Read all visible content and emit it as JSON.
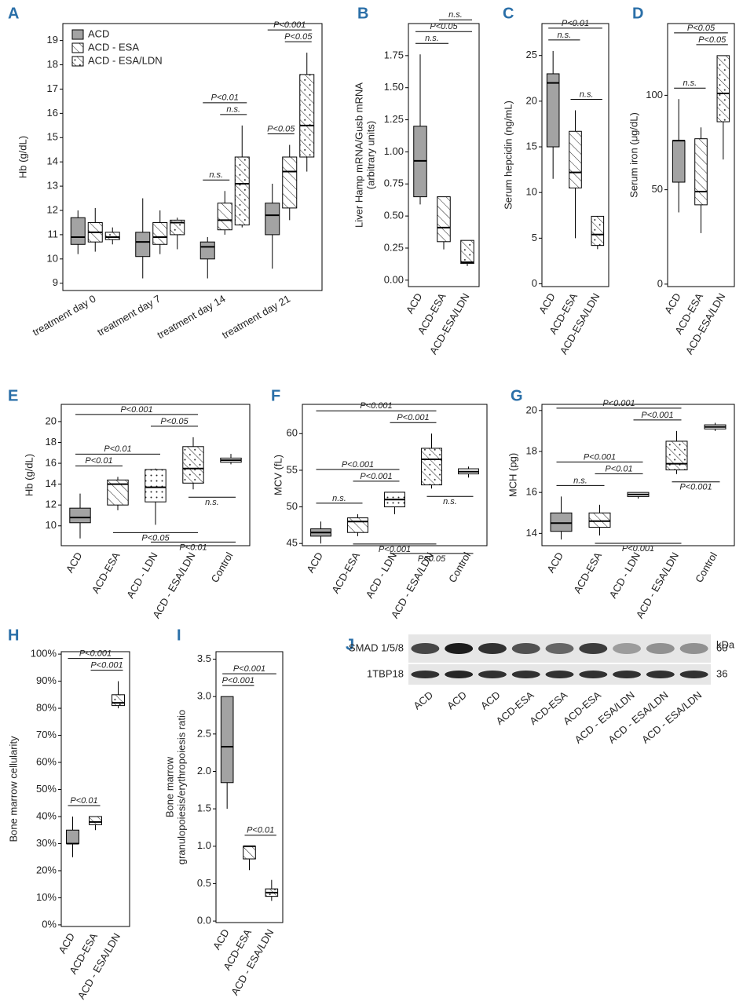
{
  "chart_data": [
    {
      "label": "A",
      "type": "box",
      "ylabel": "Hb (g/dL)",
      "categories": [
        "treatment day 0",
        "treatment day 7",
        "treatment day 14",
        "treatment day 21"
      ],
      "series": [
        {
          "name": "ACD",
          "fill": "gray",
          "min": [
            10.2,
            9.2,
            9.2,
            9.6
          ],
          "q1": [
            10.6,
            10.1,
            10.0,
            11.0
          ],
          "median": [
            10.9,
            10.7,
            10.5,
            11.8
          ],
          "q3": [
            11.7,
            11.1,
            10.7,
            12.3
          ],
          "max": [
            12.0,
            12.5,
            10.9,
            13.1
          ]
        },
        {
          "name": "ACD - ESA",
          "fill": "hatch",
          "min": [
            10.3,
            10.2,
            11.0,
            11.6
          ],
          "q1": [
            10.7,
            10.6,
            11.2,
            12.1
          ],
          "median": [
            11.1,
            10.9,
            11.6,
            13.6
          ],
          "q3": [
            11.5,
            11.5,
            12.3,
            14.2
          ],
          "max": [
            12.1,
            12.0,
            12.8,
            14.7
          ]
        },
        {
          "name": "ACD - ESA/LDN",
          "fill": "hatch-dots",
          "min": [
            10.6,
            10.4,
            11.3,
            13.6
          ],
          "q1": [
            10.8,
            11.0,
            11.4,
            14.2
          ],
          "median": [
            10.9,
            11.5,
            13.1,
            15.5
          ],
          "q3": [
            11.1,
            11.6,
            14.2,
            17.6
          ],
          "max": [
            11.3,
            11.7,
            15.5,
            18.5
          ]
        }
      ],
      "ylim": [
        8.7,
        19.7
      ],
      "yticks": [
        9,
        10,
        11,
        12,
        13,
        14,
        15,
        16,
        17,
        18,
        19
      ],
      "comparisons": [
        {
          "text": "n.s.",
          "pair": [
            6,
            7
          ]
        },
        {
          "text": "n.s.",
          "pair": [
            7,
            8
          ]
        },
        {
          "text": "P<0.01",
          "pair": [
            6,
            8
          ]
        },
        {
          "text": "P<0.05",
          "pair": [
            9,
            10
          ]
        },
        {
          "text": "P<0.05",
          "pair": [
            10,
            11
          ]
        },
        {
          "text": "P<0.001",
          "pair": [
            9,
            11
          ]
        }
      ]
    },
    {
      "label": "B",
      "type": "box",
      "ylabel": [
        "Liver Hamp mRNA/Gusb mRNA",
        "(arbitrary units)"
      ],
      "categories": [
        "ACD",
        "ACD-ESA",
        "ACD-ESA/LDN"
      ],
      "series": [
        {
          "fill": [
            "gray",
            "hatch",
            "hatch-dots"
          ],
          "min": [
            0.59,
            0.24,
            0.11
          ],
          "q1": [
            0.65,
            0.3,
            0.13
          ],
          "median": [
            0.93,
            0.41,
            0.14
          ],
          "q3": [
            1.2,
            0.65,
            0.31
          ],
          "max": [
            1.76,
            0.65,
            0.31
          ]
        }
      ],
      "ylim": [
        -0.05,
        2.0
      ],
      "yticks": [
        {
          "value": 0,
          "label": "0.00"
        },
        0.25,
        {
          "value": 0.5,
          "label": "0.50"
        },
        0.75,
        {
          "value": 1,
          "label": "1.00"
        },
        1.25,
        {
          "value": 1.5,
          "label": "1.50"
        },
        1.75
      ],
      "comparisons": [
        {
          "text": "n.s.",
          "pair": [
            0,
            1
          ]
        },
        {
          "text": "P<0.05",
          "pair": [
            0,
            2
          ]
        },
        {
          "text": "n.s.",
          "pair": [
            1,
            2
          ]
        }
      ]
    },
    {
      "label": "C",
      "type": "box",
      "ylabel": "Serum hepcidin (ng/mL)",
      "categories": [
        "ACD",
        "ACD-ESA",
        "ACD-ESA/LDN"
      ],
      "series": [
        {
          "fill": [
            "gray",
            "hatch",
            "hatch-dots"
          ],
          "min": [
            11.5,
            5,
            3.8
          ],
          "q1": [
            15,
            10.5,
            4.2
          ],
          "median": [
            22,
            12.2,
            5.4
          ],
          "q3": [
            23,
            16.7,
            7.4
          ],
          "max": [
            25.5,
            19,
            7.4
          ]
        }
      ],
      "ylim": [
        -0.3,
        28.5
      ],
      "yticks": [
        0,
        5,
        10,
        15,
        20,
        25
      ],
      "comparisons": [
        {
          "text": "n.s.",
          "pair": [
            1,
            2
          ]
        },
        {
          "text": "n.s.",
          "pair": [
            0,
            1
          ]
        },
        {
          "text": "P<0.01",
          "pair": [
            0,
            2
          ]
        }
      ]
    },
    {
      "label": "D",
      "type": "box",
      "ylabel": "Serum iron (μg/dL)",
      "categories": [
        "ACD",
        "ACD-ESA",
        "ACD-ESA/LDN"
      ],
      "series": [
        {
          "fill": [
            "gray",
            "hatch",
            "hatch-dots"
          ],
          "min": [
            38,
            27,
            66
          ],
          "q1": [
            54,
            42,
            86
          ],
          "median": [
            76,
            49,
            101
          ],
          "q3": [
            76,
            77,
            121
          ],
          "max": [
            98,
            83,
            121
          ]
        }
      ],
      "ylim": [
        -1.3,
        138
      ],
      "yticks": [
        0,
        50,
        100
      ],
      "comparisons": [
        {
          "text": "n.s.",
          "pair": [
            0,
            1
          ]
        },
        {
          "text": "P<0.05",
          "pair": [
            1,
            2
          ]
        },
        {
          "text": "P<0.05",
          "pair": [
            0,
            2
          ]
        }
      ]
    },
    {
      "label": "E",
      "type": "box",
      "ylabel": "Hb (g/dL)",
      "categories": [
        "ACD",
        "ACD-ESA",
        "ACD - LDN",
        "ACD - ESA/LDN",
        "Control"
      ],
      "series": [
        {
          "fill": [
            "gray",
            "hatch",
            "dots",
            "hatch-dots",
            "white"
          ],
          "min": [
            8.8,
            11.5,
            10.1,
            13.5,
            15.9
          ],
          "q1": [
            10.3,
            12.0,
            12.3,
            14.1,
            16.1
          ],
          "median": [
            10.8,
            14.0,
            13.7,
            15.5,
            16.3
          ],
          "q3": [
            11.7,
            14.4,
            15.4,
            17.6,
            16.5
          ],
          "max": [
            13.1,
            14.7,
            15.5,
            18.5,
            16.9
          ]
        }
      ],
      "ylim": [
        8.1,
        21.65
      ],
      "yticks": [
        10,
        12,
        14,
        16,
        18,
        20
      ],
      "comparisons": [
        {
          "text": "P<0.01",
          "pair": [
            0,
            1
          ]
        },
        {
          "text": "P<0.01",
          "pair": [
            0,
            2
          ]
        },
        {
          "text": "P<0.05",
          "pair": [
            2,
            3
          ]
        },
        {
          "text": "P<0.001",
          "pair": [
            0,
            3
          ]
        },
        {
          "text": "n.s.",
          "pair": [
            3,
            4
          ],
          "below": true
        },
        {
          "text": "P<0.05",
          "pair": [
            1,
            3
          ],
          "below": true
        },
        {
          "text": "P<0.01",
          "pair": [
            2,
            4
          ],
          "below": true
        }
      ]
    },
    {
      "label": "F",
      "type": "box",
      "ylabel": "MCV (fL)",
      "categories": [
        "ACD",
        "ACD-ESA",
        "ACD - LDN",
        "ACD - ESA/LDN",
        "Control"
      ],
      "series": [
        {
          "fill": [
            "gray",
            "hatch",
            "dots",
            "hatch-dots",
            "white"
          ],
          "min": [
            45,
            46,
            49,
            52.5,
            54
          ],
          "q1": [
            46,
            46.5,
            50,
            53,
            54.5
          ],
          "median": [
            46.5,
            48,
            51,
            56.5,
            54.8
          ],
          "q3": [
            47,
            48.5,
            52,
            58,
            55.2
          ],
          "max": [
            48,
            49,
            52,
            60,
            55.5
          ]
        }
      ],
      "ylim": [
        44.7,
        64
      ],
      "yticks": [
        45,
        50,
        55,
        60
      ],
      "comparisons": [
        {
          "text": "n.s.",
          "pair": [
            0,
            1
          ]
        },
        {
          "text": "P<0.001",
          "pair": [
            1,
            2
          ]
        },
        {
          "text": "P<0.001",
          "pair": [
            0,
            2
          ]
        },
        {
          "text": "P<0.001",
          "pair": [
            2,
            3
          ]
        },
        {
          "text": "P<0.001",
          "pair": [
            0,
            3
          ]
        },
        {
          "text": "n.s.",
          "pair": [
            3,
            4
          ],
          "below": true
        },
        {
          "text": "P<0.001",
          "pair": [
            1,
            3
          ],
          "below": true
        },
        {
          "text": "P<0.05",
          "pair": [
            2,
            4
          ],
          "below": true
        }
      ]
    },
    {
      "label": "G",
      "type": "box",
      "ylabel": "MCH (pg)",
      "categories": [
        "ACD",
        "ACD-ESA",
        "ACD - LDN",
        "ACD - ESA/LDN",
        "Control"
      ],
      "series": [
        {
          "fill": [
            "gray",
            "hatch",
            "dots",
            "hatch-dots",
            "white"
          ],
          "min": [
            13.7,
            13.9,
            15.7,
            16.9,
            19.0
          ],
          "q1": [
            14.1,
            14.3,
            15.8,
            17.1,
            19.1
          ],
          "median": [
            14.5,
            14.6,
            15.9,
            17.4,
            19.2
          ],
          "q3": [
            15.0,
            15.0,
            16.0,
            18.5,
            19.3
          ],
          "max": [
            15.8,
            15.4,
            16.0,
            19.0,
            19.4
          ]
        }
      ],
      "ylim": [
        13.4,
        20.3
      ],
      "yticks": [
        14,
        16,
        18,
        20
      ],
      "comparisons": [
        {
          "text": "n.s.",
          "pair": [
            0,
            1
          ]
        },
        {
          "text": "P<0.01",
          "pair": [
            1,
            2
          ]
        },
        {
          "text": "P<0.001",
          "pair": [
            0,
            2
          ]
        },
        {
          "text": "P<0.001",
          "pair": [
            2,
            3
          ]
        },
        {
          "text": "P<0.001",
          "pair": [
            0,
            3
          ]
        },
        {
          "text": "P<0.001",
          "pair": [
            3,
            4
          ],
          "below": true
        },
        {
          "text": "P<0.001",
          "pair": [
            1,
            3
          ],
          "below": true
        }
      ]
    },
    {
      "label": "H",
      "type": "box",
      "ylabel": "Bone marrow cellularity",
      "categories": [
        "ACD",
        "ACD-ESA",
        "ACD - ESA/LDN"
      ],
      "series": [
        {
          "fill": [
            "gray",
            "hatch",
            "hatch-dots"
          ],
          "min": [
            25,
            35,
            80
          ],
          "q1": [
            30,
            37,
            81
          ],
          "median": [
            30,
            38,
            82
          ],
          "q3": [
            35,
            40,
            85
          ],
          "max": [
            40,
            40,
            90
          ]
        }
      ],
      "ylim": [
        -0.6,
        100.9
      ],
      "yticks": [
        {
          "value": 0,
          "label": "0%"
        },
        {
          "value": 10,
          "label": "10%"
        },
        {
          "value": 20,
          "label": "20%"
        },
        {
          "value": 30,
          "label": "30%"
        },
        {
          "value": 40,
          "label": "40%"
        },
        {
          "value": 50,
          "label": "50%"
        },
        {
          "value": 60,
          "label": "60%"
        },
        {
          "value": 70,
          "label": "70%"
        },
        {
          "value": 80,
          "label": "80%"
        },
        {
          "value": 90,
          "label": "90%"
        },
        {
          "value": 100,
          "label": "100%"
        }
      ],
      "comparisons": [
        {
          "text": "P<0.01",
          "pair": [
            0,
            1
          ]
        },
        {
          "text": "P<0.001",
          "pair": [
            1,
            2
          ]
        },
        {
          "text": "P<0.001",
          "pair": [
            0,
            2
          ]
        }
      ]
    },
    {
      "label": "I",
      "type": "box",
      "ylabel": [
        "Bone marrow",
        "granulopoiesis/erythropoiesis ratio"
      ],
      "categories": [
        "ACD",
        "ACD-ESA",
        "ACD - ESA/LDN"
      ],
      "series": [
        {
          "fill": [
            "gray",
            "hatch",
            "hatch-dots"
          ],
          "min": [
            1.5,
            0.68,
            0.27
          ],
          "q1": [
            1.85,
            0.83,
            0.33
          ],
          "median": [
            2.33,
            1.0,
            0.38
          ],
          "q3": [
            3.0,
            1.0,
            0.43
          ],
          "max": [
            3.0,
            1.0,
            0.55
          ]
        }
      ],
      "ylim": [
        -0.02,
        3.6
      ],
      "yticks": [
        {
          "value": 0,
          "label": "0.0"
        },
        0.5,
        {
          "value": 1,
          "label": "1.0"
        },
        1.5,
        {
          "value": 2,
          "label": "2.0"
        },
        2.5,
        {
          "value": 3,
          "label": "3.0"
        },
        3.5
      ],
      "comparisons": [
        {
          "text": "P<0.01",
          "pair": [
            1,
            2
          ]
        },
        {
          "text": "P<0.001",
          "pair": [
            0,
            1
          ]
        },
        {
          "text": "P<0.001",
          "pair": [
            0,
            2
          ]
        }
      ]
    }
  ],
  "blot": {
    "label": "J",
    "unit": "kDa",
    "rows": [
      {
        "name": "SMAD 1/5/8",
        "size": 60
      },
      {
        "name": "1TBP18",
        "size": 36
      }
    ],
    "lanes": [
      "ACD",
      "ACD",
      "ACD",
      "ACD-ESA",
      "ACD-ESA",
      "ACD-ESA",
      "ACD - ESA/LDN",
      "ACD - ESA/LDN",
      "ACD - ESA/LDN"
    ]
  }
}
